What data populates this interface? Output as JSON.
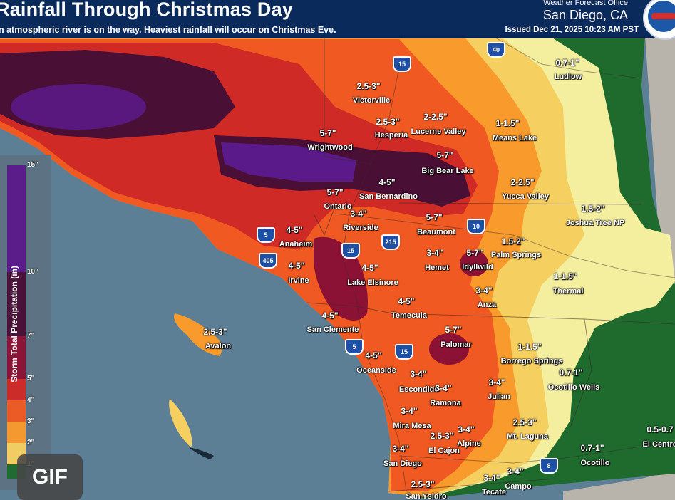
{
  "header": {
    "title": "Rainfall Through Christmas Day",
    "subtitle": "n atmospheric river is on the way. Heaviest rainfall will occur on Christmas Eve.",
    "office": "Weather Forecast Office",
    "city": "San Diego, CA",
    "issued": "Issued Dec 21, 2025 10:23 AM PST"
  },
  "legend": {
    "title": "Storm Total Precipitation (in)",
    "ticks": [
      "15\"",
      "10\"",
      "7\"",
      "5\"",
      "4\"",
      "3\"",
      "2\"",
      "1\""
    ]
  },
  "colors": {
    "ocean": "#5d7f95",
    "band_15": "#5b1a8a",
    "band_10": "#4a0f35",
    "band_7": "#8c1235",
    "band_5": "#cf2a26",
    "band_4": "#f05a22",
    "band_3": "#f89a2c",
    "band_2": "#f6cf61",
    "band_1": "#f3ef9f",
    "band_0": "#1f6b2e"
  },
  "cities": {
    "victorville": "Victorville",
    "hesperia": "Hesperia",
    "lucerne": "Lucerne Valley",
    "means": "Means Lake",
    "ludlow": "Ludlow",
    "wrightwood": "Wrightwood",
    "bigbear": "Big Bear Lake",
    "sanbernardino": "San Bernardino",
    "yucca": "Yucca Valley",
    "ontario": "Ontario",
    "riverside": "Riverside",
    "beaumont": "Beaumont",
    "joshua": "Joshua Tree NP",
    "anaheim": "Anaheim",
    "palmsprings": "Palm Springs",
    "hemet": "Hemet",
    "idyllwild": "Idyllwild",
    "irvine": "Irvine",
    "lakeelsinore": "Lake Elsinore",
    "thermal": "Thermal",
    "anza": "Anza",
    "sanclemente": "San Clemente",
    "temecula": "Temecula",
    "avalon": "Avalon",
    "palomar": "Palomar",
    "borrego": "Borrego Springs",
    "oceanside": "Oceanside",
    "ocotillowells": "Ocotillo Wells",
    "escondido": "Escondido",
    "julian": "Julian",
    "ramona": "Ramona",
    "miramesa": "Mira Mesa",
    "alpine": "Alpine",
    "mtlaguna": "Mt. Laguna",
    "elcajon": "El Cajon",
    "elcentro": "El Centro",
    "ocotillo": "Ocotillo",
    "sandiego": "San Diego",
    "campo": "Campo",
    "tecate": "Tecate",
    "sanysidro": "San Ysidro"
  },
  "amounts": {
    "victorville": "2.5-3\"",
    "hesperia": "2.5-3\"",
    "lucerne": "2-2.5\"",
    "means": "1-1.5\"",
    "ludlow": "0.7-1\"",
    "wrightwood": "5-7\"",
    "bigbear": "5-7\"",
    "sanbernardino": "4-5\"",
    "yucca": "2-2.5\"",
    "ontario": "5-7\"",
    "riverside": "3-4\"",
    "beaumont": "5-7\"",
    "joshua": "1.5-2\"",
    "anaheim": "4-5\"",
    "palmsprings": "1.5-2\"",
    "hemet": "3-4\"",
    "idyllwild": "5-7\"",
    "irvine": "4-5\"",
    "lakeelsinore": "4-5\"",
    "thermal": "1-1.5\"",
    "anza": "3-4\"",
    "sanclemente": "4-5\"",
    "temecula": "4-5\"",
    "avalon": "2.5-3\"",
    "palomar": "5-7\"",
    "borrego": "1-1.5\"",
    "oceanside": "4-5\"",
    "ocotillowells": "0.7-1\"",
    "escondido": "3-4\"",
    "julian": "3-4\"",
    "ramona": "3-4\"",
    "miramesa": "3-4\"",
    "alpine": "3-4\"",
    "mtlaguna": "2.5-3\"",
    "elcajon": "2.5-3\"",
    "elcentro": "0.5-0.7",
    "ocotillo": "0.7-1\"",
    "sandiego": "3-4\"",
    "campo": "3-4\"",
    "tecate": "3-4\"",
    "sanysidro": "2.5-3\""
  },
  "shields": {
    "i40": "40",
    "i15a": "15",
    "i10": "10",
    "i5a": "5",
    "i215": "215",
    "i15b": "15",
    "i405": "405",
    "i5b": "5",
    "i15c": "15",
    "i8": "8"
  },
  "gif_badge": "GIF"
}
